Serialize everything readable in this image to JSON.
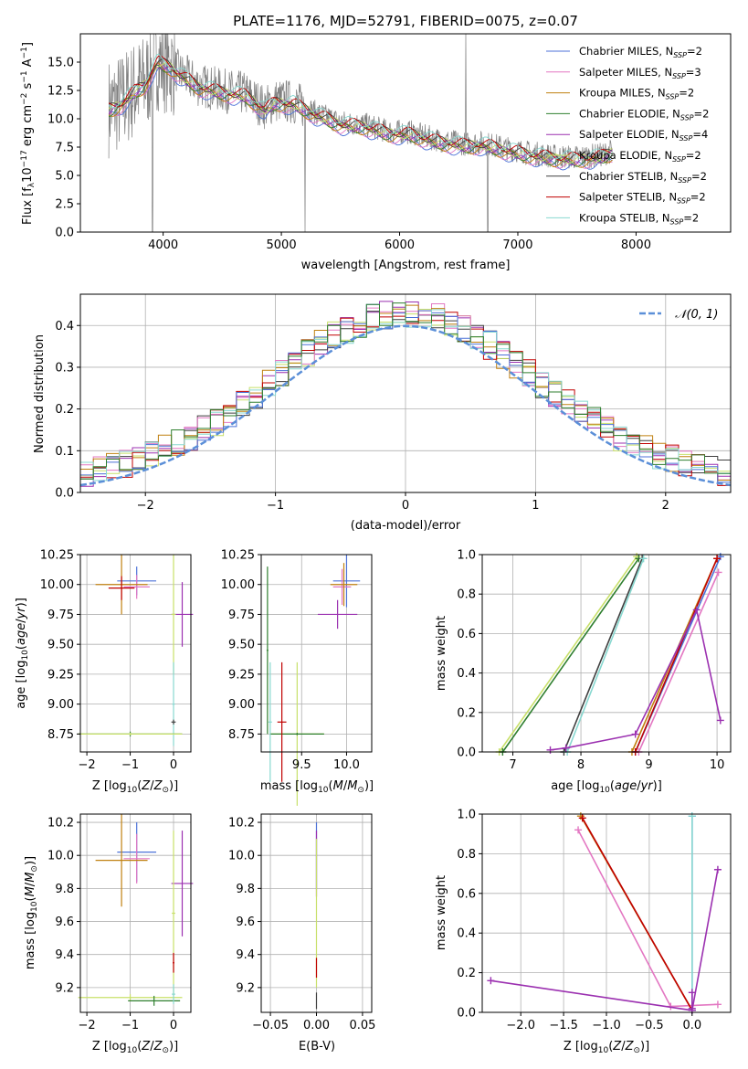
{
  "colors": {
    "spectrum": "#7f7f7f",
    "chabrier_miles": "#4c72d8",
    "salpeter_miles": "#e377c2",
    "kroupa_miles": "#c08010",
    "chabrier_elodie": "#2f7f2f",
    "salpeter_elodie": "#9b30b0",
    "kroupa_elodie": "#c8e06a",
    "chabrier_stelib": "#3f3f3f",
    "salpeter_stelib": "#c00000",
    "kroupa_stelib": "#88d8d0",
    "normal_curve": "#5b8fd8",
    "grid": "#b0b0b0"
  },
  "chart_data": [
    {
      "id": "spectrum",
      "type": "line",
      "title": "PLATE=1176, MJD=52791, FIBERID=0075, z=0.07",
      "xlabel": "wavelength [Angstrom, rest frame]",
      "ylabel": "Flux [f_λ10^-17 erg cm^-2 s^-1 A^-1]",
      "xlim": [
        3300,
        8800
      ],
      "ylim": [
        0,
        17.5
      ],
      "xticks": [
        4000,
        5000,
        6000,
        7000,
        8000
      ],
      "yticks": [
        0.0,
        2.5,
        5.0,
        7.5,
        10.0,
        12.5,
        15.0
      ],
      "grid": false,
      "legend_position": "top-right",
      "legend": [
        {
          "lib": "Chabrier MILES",
          "n": "2",
          "color_key": "chabrier_miles"
        },
        {
          "lib": "Salpeter MILES",
          "n": "3",
          "color_key": "salpeter_miles"
        },
        {
          "lib": "Kroupa MILES",
          "n": "2",
          "color_key": "kroupa_miles"
        },
        {
          "lib": "Chabrier ELODIE",
          "n": "2",
          "color_key": "chabrier_elodie"
        },
        {
          "lib": "Salpeter ELODIE",
          "n": "4",
          "color_key": "salpeter_elodie"
        },
        {
          "lib": "Kroupa ELODIE",
          "n": "2",
          "color_key": "kroupa_elodie"
        },
        {
          "lib": "Chabrier STELIB",
          "n": "2",
          "color_key": "chabrier_stelib"
        },
        {
          "lib": "Salpeter STELIB",
          "n": "2",
          "color_key": "salpeter_stelib"
        },
        {
          "lib": "Kroupa STELIB",
          "n": "2",
          "color_key": "kroupa_stelib"
        }
      ],
      "continuum": {
        "x": [
          3550,
          3650,
          3750,
          3850,
          3950,
          4050,
          4150,
          4300,
          4500,
          4700,
          4860,
          4950,
          5100,
          5300,
          5500,
          5700,
          5900,
          6100,
          6300,
          6560,
          6700,
          6900,
          7100,
          7300,
          7500,
          7700,
          7800
        ],
        "y": [
          11.0,
          11.5,
          12.5,
          13.2,
          15.2,
          14.8,
          14.0,
          13.0,
          12.5,
          12.2,
          11.0,
          11.6,
          11.5,
          10.5,
          9.7,
          9.5,
          8.9,
          8.8,
          8.2,
          7.8,
          7.9,
          7.4,
          7.0,
          6.7,
          6.6,
          6.8,
          7.2
        ]
      }
    },
    {
      "id": "residuals",
      "type": "line",
      "xlabel": "(data-model)/error",
      "ylabel": "Normed distribution",
      "xlim": [
        -2.5,
        2.5
      ],
      "ylim": [
        0,
        0.475
      ],
      "xticks": [
        -2,
        -1,
        0,
        1,
        2
      ],
      "yticks": [
        0.0,
        0.1,
        0.2,
        0.3,
        0.4
      ],
      "grid": true,
      "legend_position": "top-right",
      "legend_label": "𝒩(0, 1)",
      "normal": {
        "mean": 0,
        "sigma": 1
      }
    },
    {
      "id": "age_vs_Z",
      "type": "scatter",
      "xlabel_main": "Z [log",
      "xlabel_sub": "10",
      "xlabel_tail": "(Z/Z",
      "xlabel_end": ")]",
      "ylabel": "age  [log10(age/yr)]",
      "xlim": [
        -2.15,
        0.4
      ],
      "ylim": [
        8.6,
        10.25
      ],
      "xticks": [
        -2,
        -1,
        0
      ],
      "yticks": [
        8.75,
        9.0,
        9.25,
        9.5,
        9.75,
        10.0,
        10.25
      ],
      "grid": true
    },
    {
      "id": "age_vs_mass",
      "type": "scatter",
      "xlabel": "mass [log10(M/M⊙)]",
      "xlim": [
        9.05,
        10.28
      ],
      "ylim": [
        8.6,
        10.25
      ],
      "xticks": [
        9.5,
        10.0
      ],
      "yticks": [
        8.75,
        9.0,
        9.25,
        9.5,
        9.75,
        10.0,
        10.25
      ],
      "grid": true
    },
    {
      "id": "massweight_vs_age",
      "type": "line",
      "xlabel": "age  [log10(age/yr)]",
      "ylabel": "mass weight",
      "xlim": [
        6.55,
        10.2
      ],
      "ylim": [
        0,
        1.0
      ],
      "xticks": [
        7,
        8,
        9,
        10
      ],
      "yticks": [
        0.0,
        0.2,
        0.4,
        0.6,
        0.8,
        1.0
      ],
      "grid": true,
      "series": [
        {
          "color_key": "kroupa_elodie",
          "x": [
            6.8,
            8.82
          ],
          "y": [
            0.0,
            0.99
          ]
        },
        {
          "color_key": "chabrier_elodie",
          "x": [
            6.85,
            8.85
          ],
          "y": [
            0.0,
            0.98
          ]
        },
        {
          "color_key": "chabrier_stelib",
          "x": [
            7.75,
            8.9
          ],
          "y": [
            0.0,
            0.98
          ]
        },
        {
          "color_key": "kroupa_stelib",
          "x": [
            7.8,
            8.92
          ],
          "y": [
            0.0,
            0.98
          ]
        },
        {
          "color_key": "kroupa_miles",
          "x": [
            8.75,
            10.0
          ],
          "y": [
            0.0,
            0.98
          ]
        },
        {
          "color_key": "chabrier_miles",
          "x": [
            8.8,
            10.05
          ],
          "y": [
            0.0,
            0.99
          ]
        },
        {
          "color_key": "salpeter_miles",
          "x": [
            8.85,
            10.02
          ],
          "y": [
            0.0,
            0.91
          ]
        },
        {
          "color_key": "salpeter_stelib",
          "x": [
            8.8,
            10.0
          ],
          "y": [
            0.0,
            0.98
          ]
        },
        {
          "color_key": "salpeter_elodie",
          "x": [
            7.55,
            7.78,
            8.8,
            9.7,
            10.05
          ],
          "y": [
            0.01,
            0.02,
            0.09,
            0.72,
            0.16
          ]
        }
      ]
    },
    {
      "id": "mass_vs_Z",
      "type": "scatter",
      "xlabel": "Z [log10(Z/Z⊙)]",
      "ylabel": "mass [log10(M/M⊙)]",
      "xlim": [
        -2.15,
        0.4
      ],
      "ylim": [
        9.05,
        10.25
      ],
      "xticks": [
        -2,
        -1,
        0
      ],
      "yticks": [
        9.2,
        9.4,
        9.6,
        9.8,
        10.0,
        10.2
      ],
      "grid": true
    },
    {
      "id": "mass_vs_ebv",
      "type": "scatter",
      "xlabel": "E(B-V)",
      "xlim": [
        -0.06,
        0.06
      ],
      "ylim": [
        9.05,
        10.25
      ],
      "xticks": [
        -0.05,
        0.0,
        0.05
      ],
      "yticks": [
        9.2,
        9.4,
        9.6,
        9.8,
        10.0,
        10.2
      ],
      "grid": true
    },
    {
      "id": "massweight_vs_Z",
      "type": "line",
      "xlabel": "Z [log10(Z/Z⊙)]",
      "ylabel": "mass weight",
      "xlim": [
        -2.45,
        0.45
      ],
      "ylim": [
        0,
        1.0
      ],
      "xticks": [
        -2.0,
        -1.5,
        -1.0,
        -0.5,
        0.0
      ],
      "yticks": [
        0.0,
        0.2,
        0.4,
        0.6,
        0.8,
        1.0
      ],
      "grid": true,
      "series": [
        {
          "color_key": "salpeter_miles",
          "x": [
            -1.33,
            -0.25,
            0.3
          ],
          "y": [
            0.92,
            0.03,
            0.04
          ]
        },
        {
          "color_key": "kroupa_miles",
          "x": [
            -1.3,
            0.0
          ],
          "y": [
            0.99,
            0.01
          ]
        },
        {
          "color_key": "salpeter_stelib",
          "x": [
            -1.28,
            0.0
          ],
          "y": [
            0.98,
            0.01
          ]
        },
        {
          "color_key": "chabrier_miles",
          "x": [
            0.0,
            0.0
          ],
          "y": [
            0.99,
            0.01
          ]
        },
        {
          "color_key": "kroupa_stelib",
          "x": [
            0.0,
            0.0
          ],
          "y": [
            0.99,
            0.01
          ]
        },
        {
          "color_key": "salpeter_elodie",
          "x": [
            -2.35,
            0.0,
            0.3
          ],
          "y": [
            0.16,
            0.01,
            0.72
          ]
        },
        {
          "color_key": "salpeter_elodie",
          "x": [
            0.0,
            0.0
          ],
          "y": [
            0.1,
            0.02
          ]
        }
      ]
    }
  ]
}
